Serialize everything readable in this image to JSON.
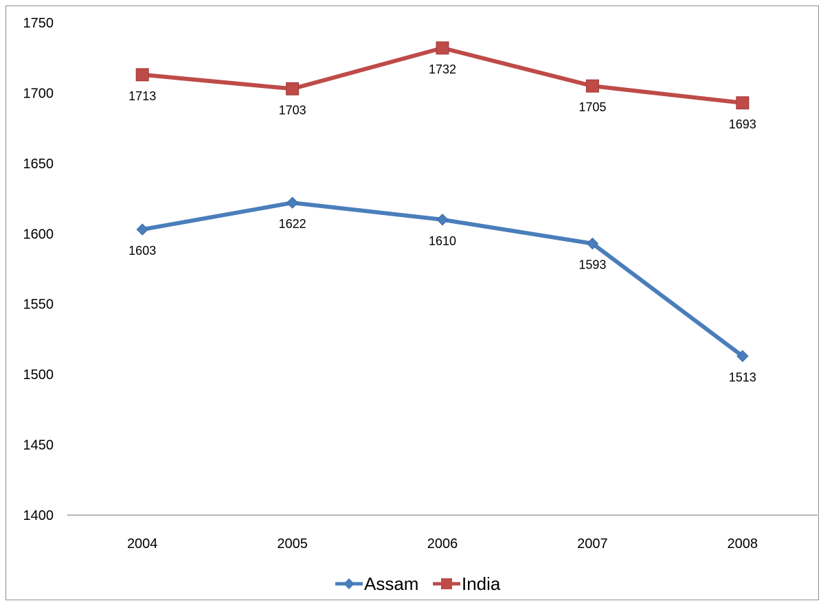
{
  "chart_data": {
    "type": "line",
    "title": "",
    "xlabel": "",
    "ylabel": "",
    "categories": [
      "2004",
      "2005",
      "2006",
      "2007",
      "2008"
    ],
    "ylim": [
      1400,
      1750
    ],
    "yticks": [
      "1400",
      "1450",
      "1500",
      "1550",
      "1600",
      "1650",
      "1700",
      "1750"
    ],
    "grid": false,
    "legend_position": "bottom",
    "series": [
      {
        "name": "Assam",
        "values": [
          1603,
          1622,
          1610,
          1593,
          1513
        ],
        "labels": [
          "1603",
          "1622",
          "1610",
          "1593",
          "1513"
        ],
        "color": "#4a7ebb",
        "marker": "diamond"
      },
      {
        "name": "India",
        "values": [
          1713,
          1703,
          1732,
          1705,
          1693
        ],
        "labels": [
          "1713",
          "1703",
          "1732",
          "1705",
          "1693"
        ],
        "color": "#be4b48",
        "marker": "square"
      }
    ]
  }
}
